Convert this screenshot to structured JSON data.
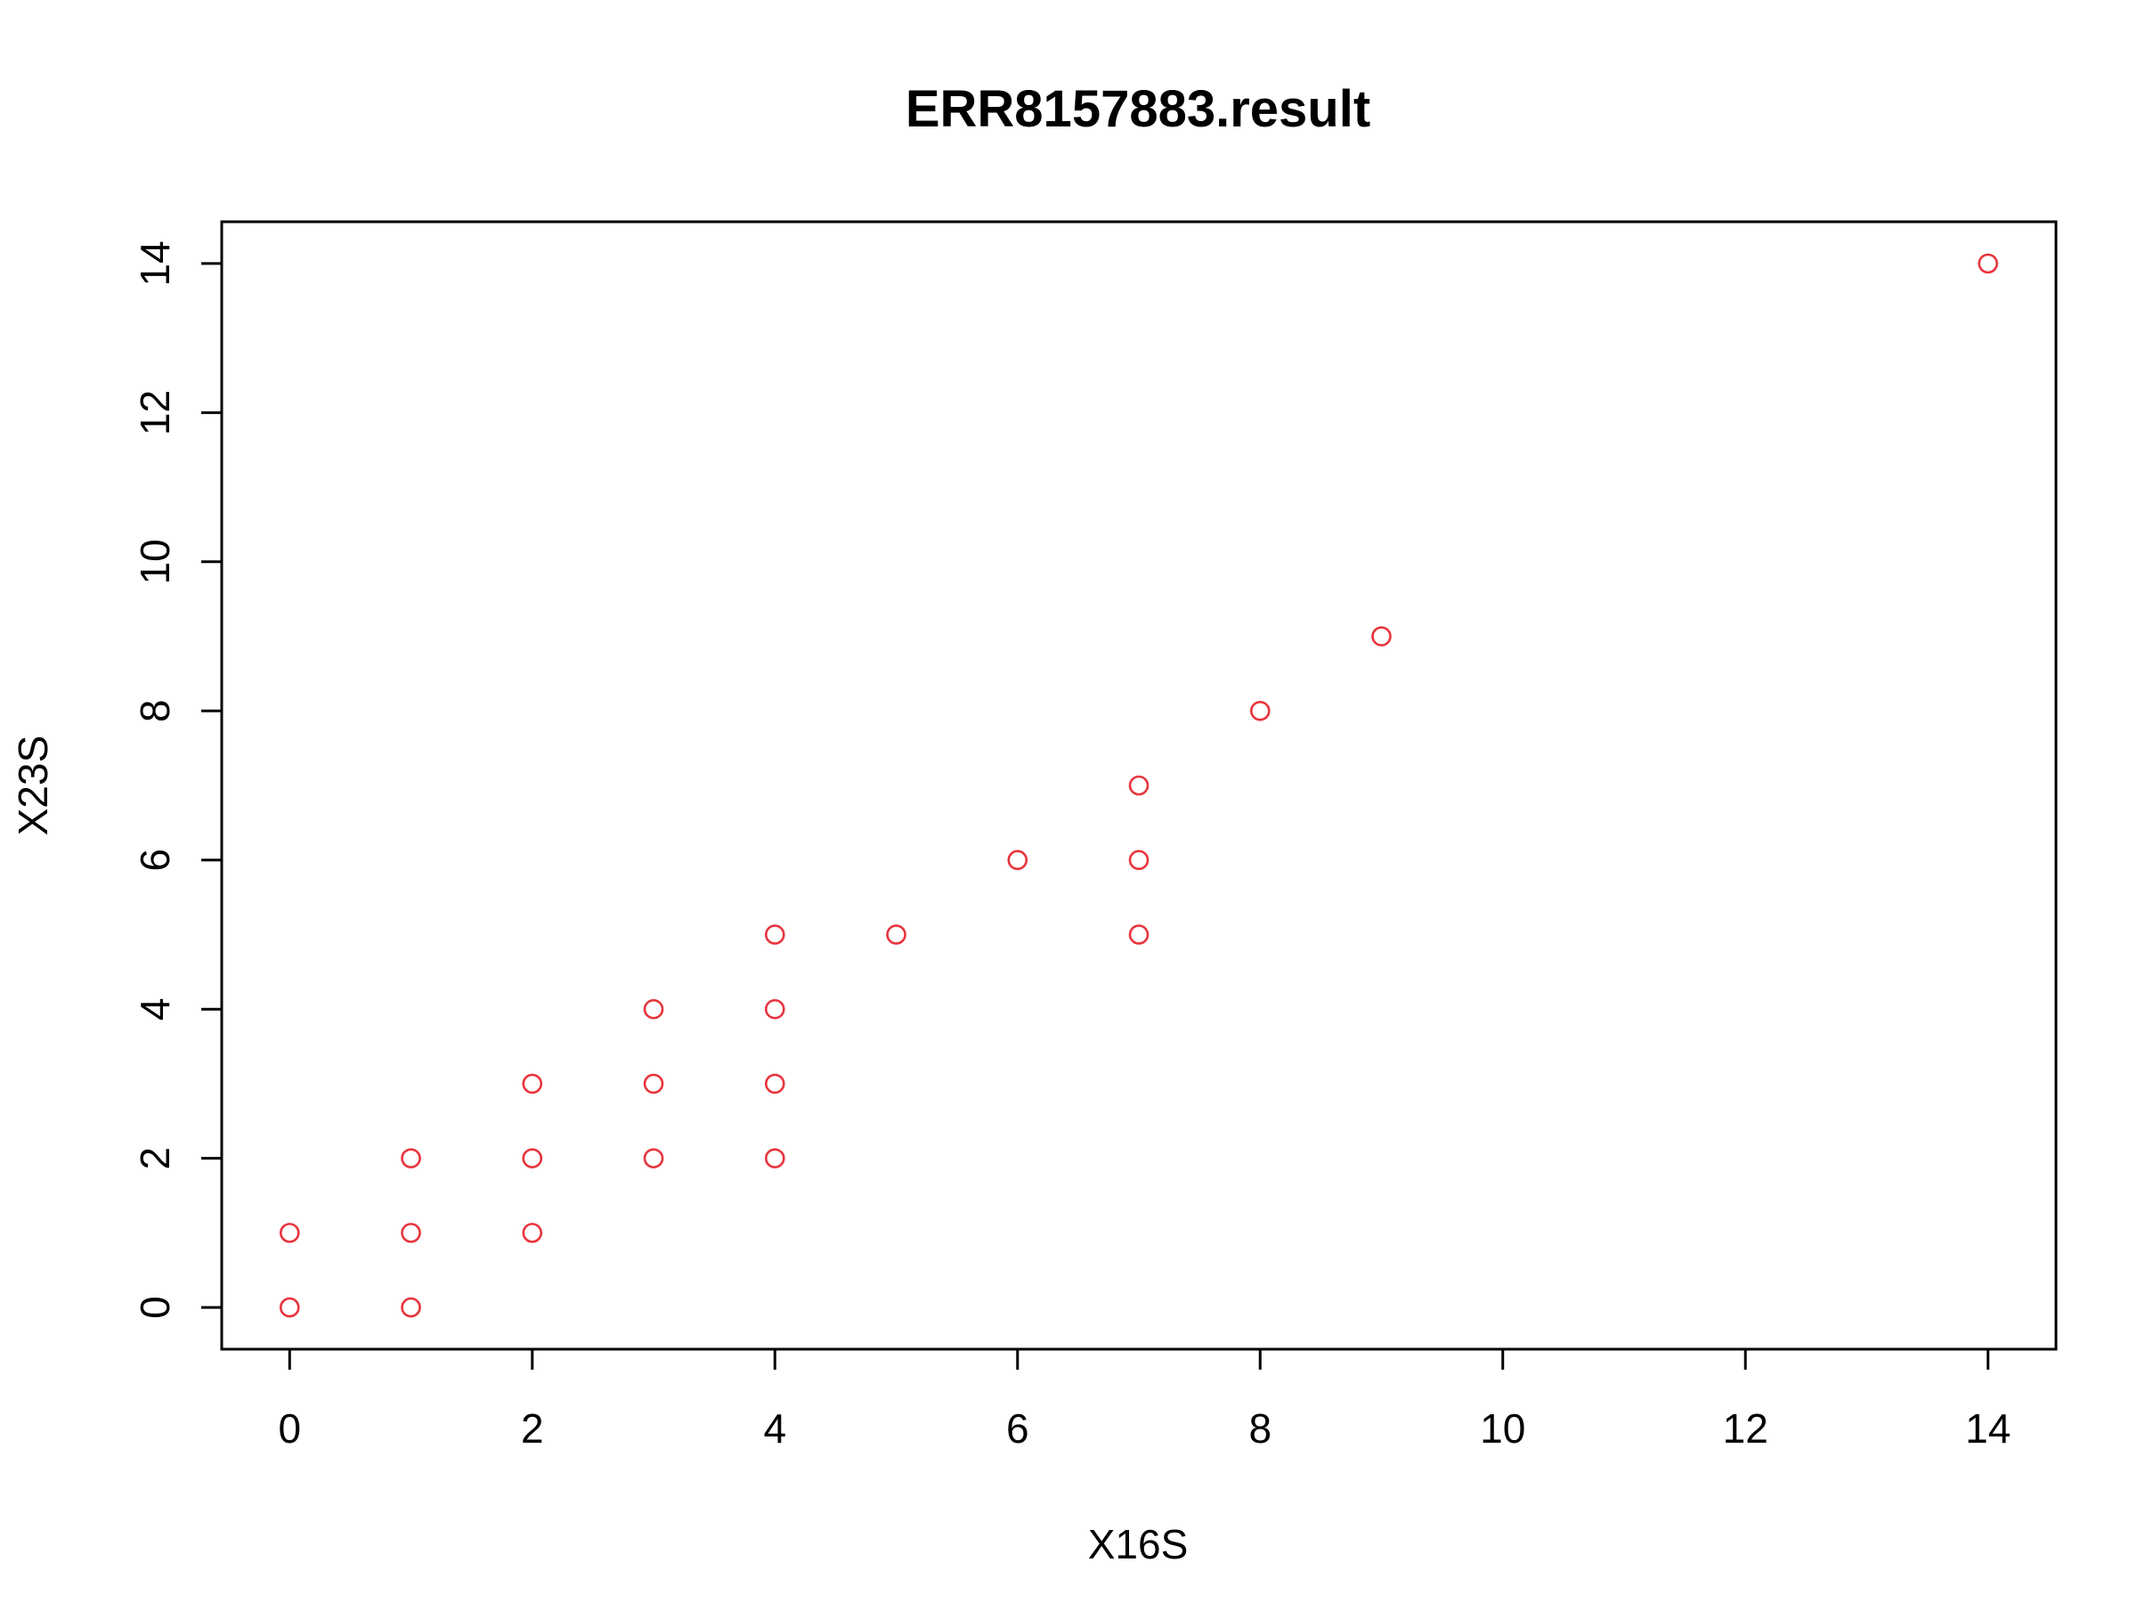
{
  "chart_data": {
    "type": "scatter",
    "title": "ERR8157883.result",
    "xlabel": "X16S",
    "ylabel": "X23S",
    "xlim": [
      -0.56,
      14.56
    ],
    "ylim": [
      -0.56,
      14.56
    ],
    "x_ticks": [
      0,
      2,
      4,
      6,
      8,
      10,
      12,
      14
    ],
    "y_ticks": [
      0,
      2,
      4,
      6,
      8,
      10,
      12,
      14
    ],
    "grid": false,
    "legend": "none",
    "point_shape": "open-circle",
    "point_color": "#e8343c",
    "points": [
      {
        "x": 0,
        "y": 0
      },
      {
        "x": 0,
        "y": 1
      },
      {
        "x": 1,
        "y": 0
      },
      {
        "x": 1,
        "y": 1
      },
      {
        "x": 1,
        "y": 2
      },
      {
        "x": 2,
        "y": 1
      },
      {
        "x": 2,
        "y": 2
      },
      {
        "x": 2,
        "y": 3
      },
      {
        "x": 3,
        "y": 2
      },
      {
        "x": 3,
        "y": 3
      },
      {
        "x": 3,
        "y": 4
      },
      {
        "x": 4,
        "y": 2
      },
      {
        "x": 4,
        "y": 3
      },
      {
        "x": 4,
        "y": 4
      },
      {
        "x": 4,
        "y": 5
      },
      {
        "x": 5,
        "y": 5
      },
      {
        "x": 6,
        "y": 6
      },
      {
        "x": 7,
        "y": 5
      },
      {
        "x": 7,
        "y": 6
      },
      {
        "x": 7,
        "y": 7
      },
      {
        "x": 8,
        "y": 8
      },
      {
        "x": 9,
        "y": 9
      },
      {
        "x": 14,
        "y": 14
      }
    ]
  }
}
